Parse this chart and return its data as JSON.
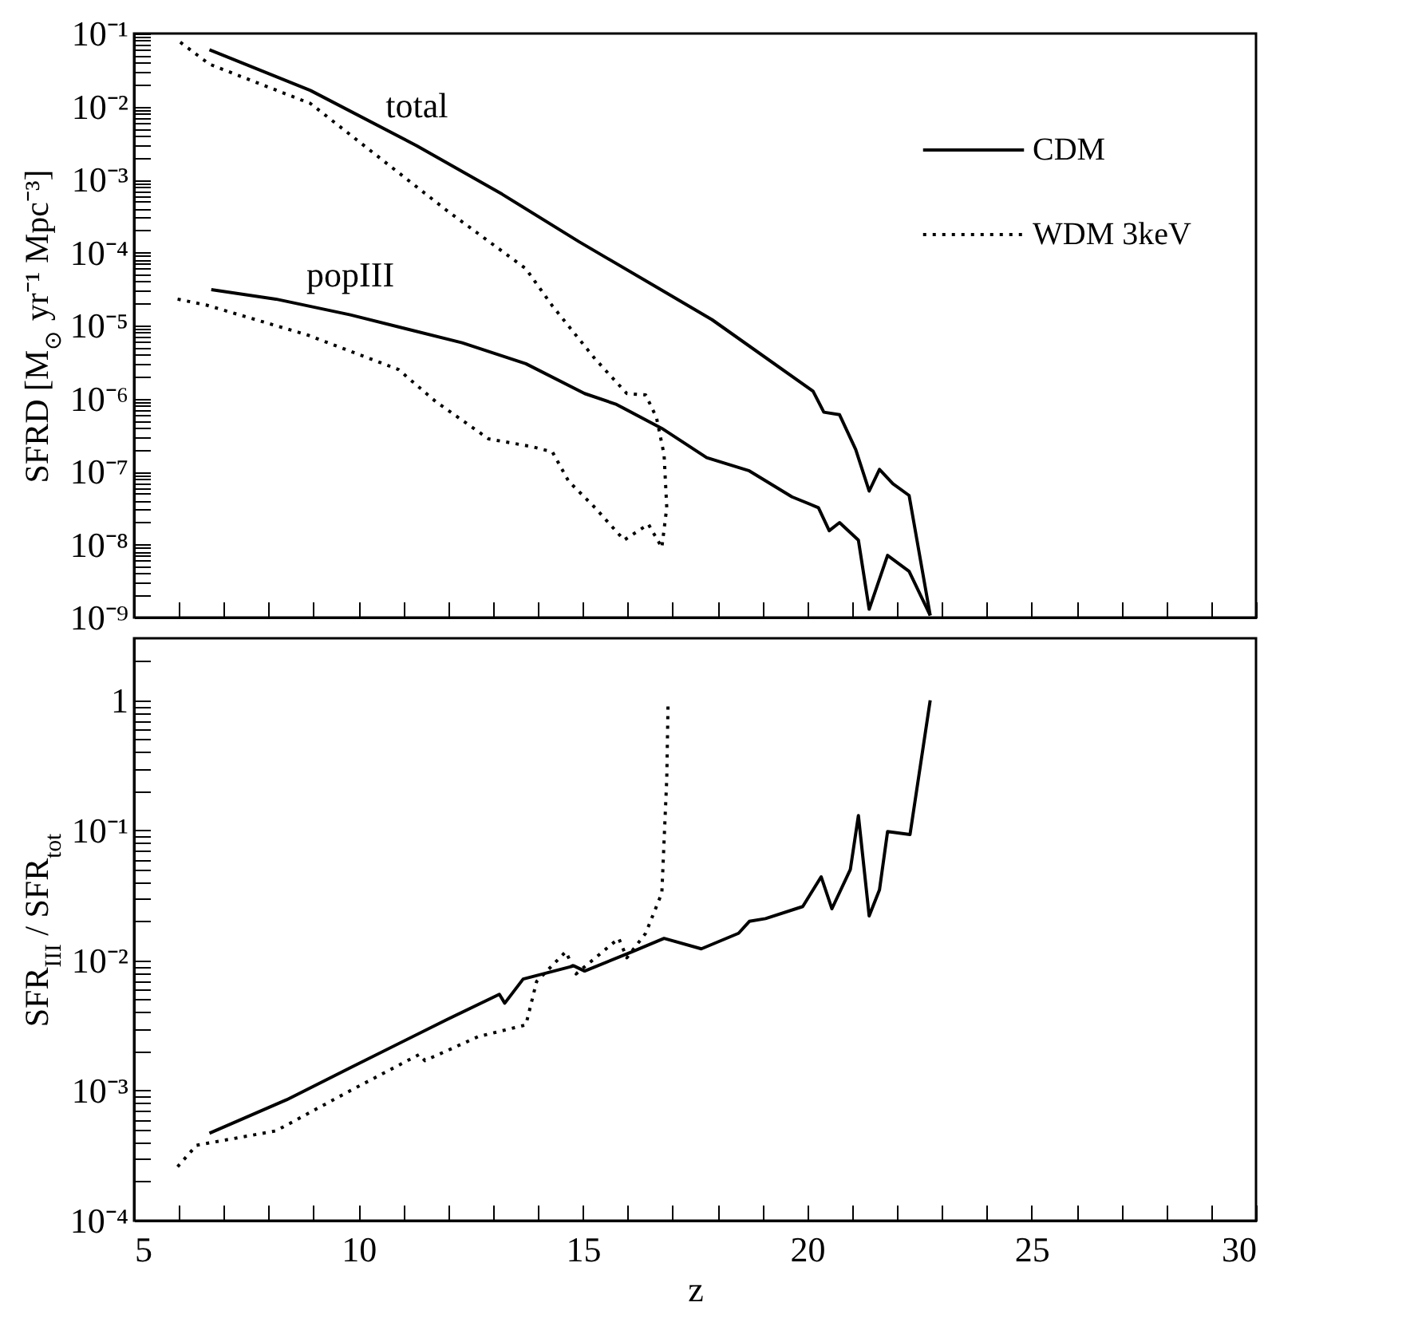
{
  "chart_data": [
    {
      "type": "line",
      "ylabel": "SFRD [M$_{⊙}$ yr⁻¹ Mpc⁻³]",
      "log": "y",
      "legend": "top right",
      "tick_labels": "y",
      "xlim": [
        5,
        30
      ],
      "xticks": [
        5,
        {
          "value": 6,
          "label": null
        },
        {
          "value": 7,
          "label": null
        },
        {
          "value": 8,
          "label": null
        },
        {
          "value": 9,
          "label": null
        },
        10,
        {
          "value": 11,
          "label": null
        },
        {
          "value": 12,
          "label": null
        },
        {
          "value": 13,
          "label": null
        },
        {
          "value": 14,
          "label": null
        },
        15,
        {
          "value": 16,
          "label": null
        },
        {
          "value": 17,
          "label": null
        },
        {
          "value": 18,
          "label": null
        },
        {
          "value": 19,
          "label": null
        },
        20,
        {
          "value": 21,
          "label": null
        },
        {
          "value": 22,
          "label": null
        },
        {
          "value": 23,
          "label": null
        },
        {
          "value": 24,
          "label": null
        },
        25,
        {
          "value": 26,
          "label": null
        },
        {
          "value": 27,
          "label": null
        },
        {
          "value": 28,
          "label": null
        },
        {
          "value": 29,
          "label": null
        },
        30
      ],
      "ylim": [
        1e-09,
        0.1
      ],
      "yticks": [
        {
          "value": 1e-09,
          "label": "10⁻⁹"
        },
        {
          "value": 2e-09,
          "label": null
        },
        {
          "value": 3e-09,
          "label": null
        },
        {
          "value": 4e-09,
          "label": null
        },
        {
          "value": 5e-09,
          "label": null
        },
        {
          "value": 6e-09,
          "label": null
        },
        {
          "value": 7e-09,
          "label": null
        },
        {
          "value": 8e-09,
          "label": null
        },
        {
          "value": 9e-09,
          "label": null
        },
        {
          "value": 1e-08,
          "label": "10⁻⁸"
        },
        {
          "value": 2e-08,
          "label": null
        },
        {
          "value": 3e-08,
          "label": null
        },
        {
          "value": 4e-08,
          "label": null
        },
        {
          "value": 5e-08,
          "label": null
        },
        {
          "value": 6e-08,
          "label": null
        },
        {
          "value": 7e-08,
          "label": null
        },
        {
          "value": 8e-08,
          "label": null
        },
        {
          "value": 9e-08,
          "label": null
        },
        {
          "value": 1e-07,
          "label": "10⁻⁷"
        },
        {
          "value": 2e-07,
          "label": null
        },
        {
          "value": 3e-07,
          "label": null
        },
        {
          "value": 4e-07,
          "label": null
        },
        {
          "value": 5e-07,
          "label": null
        },
        {
          "value": 6e-07,
          "label": null
        },
        {
          "value": 7e-07,
          "label": null
        },
        {
          "value": 8e-07,
          "label": null
        },
        {
          "value": 9e-07,
          "label": null
        },
        {
          "value": 1e-06,
          "label": "10⁻⁶"
        },
        {
          "value": 2e-06,
          "label": null
        },
        {
          "value": 3e-06,
          "label": null
        },
        {
          "value": 4e-06,
          "label": null
        },
        {
          "value": 5e-06,
          "label": null
        },
        {
          "value": 6e-06,
          "label": null
        },
        {
          "value": 7e-06,
          "label": null
        },
        {
          "value": 8e-06,
          "label": null
        },
        {
          "value": 9e-06,
          "label": null
        },
        {
          "value": 1e-05,
          "label": "10⁻⁵"
        },
        {
          "value": 2e-05,
          "label": null
        },
        {
          "value": 3e-05,
          "label": null
        },
        {
          "value": 4e-05,
          "label": null
        },
        {
          "value": 5e-05,
          "label": null
        },
        {
          "value": 6e-05,
          "label": null
        },
        {
          "value": 7e-05,
          "label": null
        },
        {
          "value": 8e-05,
          "label": null
        },
        {
          "value": 9e-05,
          "label": null
        },
        {
          "value": 0.0001,
          "label": "10⁻⁴"
        },
        {
          "value": 0.0002,
          "label": null
        },
        {
          "value": 0.0003,
          "label": null
        },
        {
          "value": 0.0004,
          "label": null
        },
        {
          "value": 0.0005,
          "label": null
        },
        {
          "value": 0.0006,
          "label": null
        },
        {
          "value": 0.0007,
          "label": null
        },
        {
          "value": 0.0008,
          "label": null
        },
        {
          "value": 0.0009,
          "label": null
        },
        {
          "value": 0.001,
          "label": "10⁻³"
        },
        {
          "value": 0.002,
          "label": null
        },
        {
          "value": 0.003,
          "label": null
        },
        {
          "value": 0.004,
          "label": null
        },
        {
          "value": 0.005,
          "label": null
        },
        {
          "value": 0.006,
          "label": null
        },
        {
          "value": 0.007,
          "label": null
        },
        {
          "value": 0.008,
          "label": null
        },
        {
          "value": 0.009,
          "label": null
        },
        {
          "value": 0.01,
          "label": "10⁻²"
        },
        {
          "value": 0.02,
          "label": null
        },
        {
          "value": 0.03,
          "label": null
        },
        {
          "value": 0.04,
          "label": null
        },
        {
          "value": 0.05,
          "label": null
        },
        {
          "value": 0.06,
          "label": null
        },
        {
          "value": 0.07,
          "label": null
        },
        {
          "value": 0.08,
          "label": null
        },
        {
          "value": 0.09,
          "label": null
        },
        {
          "value": 0.1,
          "label": "10⁻¹"
        }
      ],
      "annotations": [
        {
          "text": "total",
          "x": 11.3,
          "y": 0.0029
        },
        {
          "text": "popIII",
          "x": 9.82,
          "y": 1.4e-05
        }
      ],
      "series": [
        {
          "name": "CDM",
          "color": "#000000",
          "line_style": "solid",
          "x": [
            6.68,
            8.93,
            11.3,
            13.2,
            14.92,
            16.7,
            17.88,
            20.13,
            20.37,
            20.72,
            21.08,
            21.38,
            21.61,
            21.91,
            22.27,
            22.74
          ],
          "values": [
            0.06,
            0.0166,
            0.0029,
            0.00063,
            0.00014,
            3.2e-05,
            1.2e-05,
            1.26e-06,
            6.5e-07,
            6e-07,
            2e-07,
            5.4e-08,
            1.07e-07,
            6.8e-08,
            4.7e-08,
            1.07e-09
          ]
        },
        {
          "color": "#000000",
          "line_style": "solid",
          "x": [
            6.72,
            8.16,
            9.82,
            12.31,
            13.73,
            15.04,
            15.75,
            16.76,
            17.76,
            18.71,
            19.66,
            20.25,
            20.49,
            20.72,
            21.14,
            21.38,
            21.79,
            22.27,
            22.74
          ],
          "values": [
            3.1e-05,
            2.3e-05,
            1.4e-05,
            5.8e-06,
            3e-06,
            1.17e-06,
            8.3e-07,
            3.9e-07,
            1.55e-07,
            1.02e-07,
            4.5e-08,
            3.2e-08,
            1.55e-08,
            2e-08,
            1.15e-08,
            1.3e-09,
            7.1e-09,
            4.3e-09,
            1.07e-09
          ]
        },
        {
          "name": "WDM 3keV",
          "color": "#000000",
          "line_style": "dotted",
          "x": [
            6.03,
            6.68,
            8.93,
            10.3,
            11.96,
            13.73,
            14.32,
            15.27,
            15.98,
            16.4,
            16.64,
            16.81,
            16.87,
            16.76
          ],
          "values": [
            0.076,
            0.038,
            0.011,
            0.0024,
            0.00038,
            6e-05,
            1.86e-05,
            3.5e-06,
            1.17e-06,
            1.12e-06,
            5.5e-07,
            1.7e-07,
            3.2e-08,
            9.1e-09
          ]
        },
        {
          "color": "#000000",
          "line_style": "dotted",
          "x": [
            5.97,
            6.62,
            8.87,
            10.89,
            11.72,
            12.9,
            13.85,
            14.32,
            14.68,
            15.27,
            15.92,
            16.46,
            16.76
          ],
          "values": [
            2.3e-05,
            1.9e-05,
            7.4e-06,
            2.5e-06,
            9.1e-07,
            2.8e-07,
            2.2e-07,
            1.86e-07,
            7.4e-08,
            3.2e-08,
            1.15e-08,
            1.9e-08,
            9.1e-09
          ]
        }
      ]
    },
    {
      "type": "line",
      "xlabel": "z",
      "ylabel": "SFR$_{III}$ / SFR$_{tot}$",
      "log": "y",
      "xlim": [
        5,
        30
      ],
      "xticks": [
        5,
        {
          "value": 6,
          "label": null
        },
        {
          "value": 7,
          "label": null
        },
        {
          "value": 8,
          "label": null
        },
        {
          "value": 9,
          "label": null
        },
        10,
        {
          "value": 11,
          "label": null
        },
        {
          "value": 12,
          "label": null
        },
        {
          "value": 13,
          "label": null
        },
        {
          "value": 14,
          "label": null
        },
        15,
        {
          "value": 16,
          "label": null
        },
        {
          "value": 17,
          "label": null
        },
        {
          "value": 18,
          "label": null
        },
        {
          "value": 19,
          "label": null
        },
        20,
        {
          "value": 21,
          "label": null
        },
        {
          "value": 22,
          "label": null
        },
        {
          "value": 23,
          "label": null
        },
        {
          "value": 24,
          "label": null
        },
        25,
        {
          "value": 26,
          "label": null
        },
        {
          "value": 27,
          "label": null
        },
        {
          "value": 28,
          "label": null
        },
        {
          "value": 29,
          "label": null
        },
        30
      ],
      "ylim": [
        0.0001,
        3
      ],
      "yticks": [
        {
          "value": 0.0001,
          "label": "10⁻⁴"
        },
        {
          "value": 0.0002,
          "label": null
        },
        {
          "value": 0.0003,
          "label": null
        },
        {
          "value": 0.0004,
          "label": null
        },
        {
          "value": 0.0005,
          "label": null
        },
        {
          "value": 0.0006,
          "label": null
        },
        {
          "value": 0.0007,
          "label": null
        },
        {
          "value": 0.0008,
          "label": null
        },
        {
          "value": 0.0009,
          "label": null
        },
        {
          "value": 0.001,
          "label": "10⁻³"
        },
        {
          "value": 0.002,
          "label": null
        },
        {
          "value": 0.003,
          "label": null
        },
        {
          "value": 0.004,
          "label": null
        },
        {
          "value": 0.005,
          "label": null
        },
        {
          "value": 0.006,
          "label": null
        },
        {
          "value": 0.007,
          "label": null
        },
        {
          "value": 0.008,
          "label": null
        },
        {
          "value": 0.009,
          "label": null
        },
        {
          "value": 0.01,
          "label": "10⁻²"
        },
        {
          "value": 0.02,
          "label": null
        },
        {
          "value": 0.03,
          "label": null
        },
        {
          "value": 0.04,
          "label": null
        },
        {
          "value": 0.05,
          "label": null
        },
        {
          "value": 0.06,
          "label": null
        },
        {
          "value": 0.07,
          "label": null
        },
        {
          "value": 0.08,
          "label": null
        },
        {
          "value": 0.09,
          "label": null
        },
        {
          "value": 0.1,
          "label": "10⁻¹"
        },
        {
          "value": 0.2,
          "label": null
        },
        {
          "value": 0.3,
          "label": null
        },
        {
          "value": 0.4,
          "label": null
        },
        {
          "value": 0.5,
          "label": null
        },
        {
          "value": 0.6,
          "label": null
        },
        {
          "value": 0.7,
          "label": null
        },
        {
          "value": 0.8,
          "label": null
        },
        {
          "value": 0.9,
          "label": null
        },
        1,
        {
          "value": 2,
          "label": null
        }
      ],
      "series": [
        {
          "color": "#000000",
          "line_style": "solid",
          "x": [
            6.68,
            8.4,
            9.82,
            11.96,
            13.14,
            13.26,
            13.67,
            14.8,
            15.04,
            16.1,
            16.81,
            17.64,
            18.47,
            18.71,
            19.07,
            19.9,
            20.31,
            20.55,
            20.96,
            21.14,
            21.38,
            21.61,
            21.79,
            22.29,
            22.74
          ],
          "values": [
            0.00047,
            0.00085,
            0.0015,
            0.0035,
            0.0055,
            0.0047,
            0.0072,
            0.0091,
            0.0083,
            0.0117,
            0.0148,
            0.0123,
            0.0162,
            0.02,
            0.021,
            0.026,
            0.044,
            0.025,
            0.05,
            0.13,
            0.022,
            0.035,
            0.098,
            0.093,
            1
          ]
        },
        {
          "color": "#000000",
          "line_style": "dotted",
          "x": [
            5.97,
            6.39,
            8.16,
            9.82,
            11.36,
            11.48,
            12.67,
            13.73,
            13.97,
            14.62,
            14.85,
            15.8,
            15.98,
            16.4,
            16.76,
            16.87,
            16.9
          ],
          "values": [
            0.00026,
            0.00038,
            0.00049,
            0.001,
            0.0019,
            0.0017,
            0.0026,
            0.0032,
            0.0069,
            0.0117,
            0.0079,
            0.0148,
            0.0105,
            0.0162,
            0.033,
            0.25,
            1
          ]
        }
      ]
    }
  ]
}
